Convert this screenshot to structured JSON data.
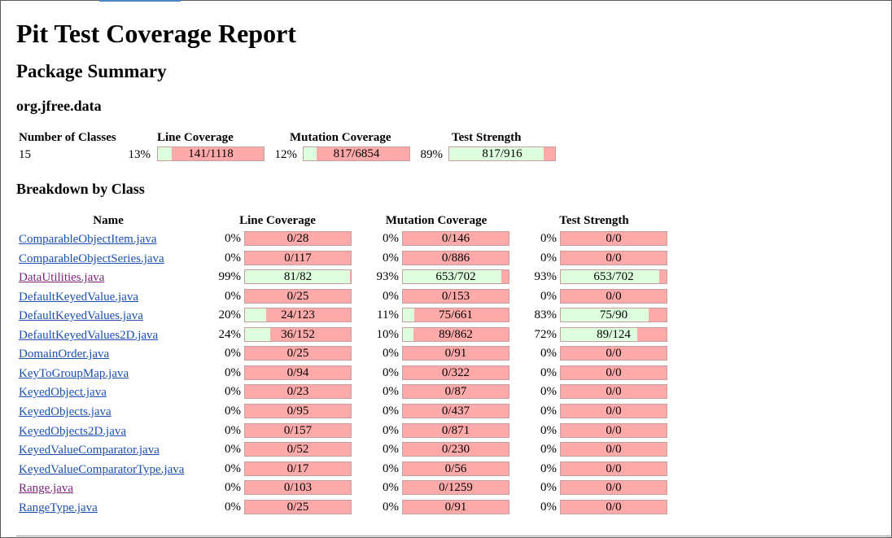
{
  "report": {
    "title": "Pit Test Coverage Report",
    "package_summary_heading": "Package Summary",
    "package_name": "org.jfree.data",
    "breakdown_heading": "Breakdown by Class"
  },
  "summary": {
    "headers": {
      "classes": "Number of Classes",
      "line": "Line Coverage",
      "mutation": "Mutation Coverage",
      "strength": "Test Strength"
    },
    "classes": "15",
    "line": {
      "pct": "13%",
      "text": "141/1118",
      "fraction": 0.13
    },
    "mutation": {
      "pct": "12%",
      "text": "817/6854",
      "fraction": 0.12
    },
    "strength": {
      "pct": "89%",
      "text": "817/916",
      "fraction": 0.89
    }
  },
  "breakdown": {
    "headers": {
      "name": "Name",
      "line": "Line Coverage",
      "mutation": "Mutation Coverage",
      "strength": "Test Strength"
    },
    "rows": [
      {
        "name": "ComparableObjectItem.java",
        "visited": false,
        "line": {
          "pct": "0%",
          "text": "0/28",
          "fraction": 0
        },
        "mutation": {
          "pct": "0%",
          "text": "0/146",
          "fraction": 0
        },
        "strength": {
          "pct": "0%",
          "text": "0/0",
          "fraction": 0
        }
      },
      {
        "name": "ComparableObjectSeries.java",
        "visited": false,
        "line": {
          "pct": "0%",
          "text": "0/117",
          "fraction": 0
        },
        "mutation": {
          "pct": "0%",
          "text": "0/886",
          "fraction": 0
        },
        "strength": {
          "pct": "0%",
          "text": "0/0",
          "fraction": 0
        }
      },
      {
        "name": "DataUtilities.java",
        "visited": true,
        "line": {
          "pct": "99%",
          "text": "81/82",
          "fraction": 0.99
        },
        "mutation": {
          "pct": "93%",
          "text": "653/702",
          "fraction": 0.93
        },
        "strength": {
          "pct": "93%",
          "text": "653/702",
          "fraction": 0.93
        }
      },
      {
        "name": "DefaultKeyedValue.java",
        "visited": false,
        "line": {
          "pct": "0%",
          "text": "0/25",
          "fraction": 0
        },
        "mutation": {
          "pct": "0%",
          "text": "0/153",
          "fraction": 0
        },
        "strength": {
          "pct": "0%",
          "text": "0/0",
          "fraction": 0
        }
      },
      {
        "name": "DefaultKeyedValues.java",
        "visited": false,
        "line": {
          "pct": "20%",
          "text": "24/123",
          "fraction": 0.2
        },
        "mutation": {
          "pct": "11%",
          "text": "75/661",
          "fraction": 0.11
        },
        "strength": {
          "pct": "83%",
          "text": "75/90",
          "fraction": 0.83
        }
      },
      {
        "name": "DefaultKeyedValues2D.java",
        "visited": false,
        "line": {
          "pct": "24%",
          "text": "36/152",
          "fraction": 0.24
        },
        "mutation": {
          "pct": "10%",
          "text": "89/862",
          "fraction": 0.1
        },
        "strength": {
          "pct": "72%",
          "text": "89/124",
          "fraction": 0.72
        }
      },
      {
        "name": "DomainOrder.java",
        "visited": false,
        "line": {
          "pct": "0%",
          "text": "0/25",
          "fraction": 0
        },
        "mutation": {
          "pct": "0%",
          "text": "0/91",
          "fraction": 0
        },
        "strength": {
          "pct": "0%",
          "text": "0/0",
          "fraction": 0
        }
      },
      {
        "name": "KeyToGroupMap.java",
        "visited": false,
        "line": {
          "pct": "0%",
          "text": "0/94",
          "fraction": 0
        },
        "mutation": {
          "pct": "0%",
          "text": "0/322",
          "fraction": 0
        },
        "strength": {
          "pct": "0%",
          "text": "0/0",
          "fraction": 0
        }
      },
      {
        "name": "KeyedObject.java",
        "visited": false,
        "line": {
          "pct": "0%",
          "text": "0/23",
          "fraction": 0
        },
        "mutation": {
          "pct": "0%",
          "text": "0/87",
          "fraction": 0
        },
        "strength": {
          "pct": "0%",
          "text": "0/0",
          "fraction": 0
        }
      },
      {
        "name": "KeyedObjects.java",
        "visited": false,
        "line": {
          "pct": "0%",
          "text": "0/95",
          "fraction": 0
        },
        "mutation": {
          "pct": "0%",
          "text": "0/437",
          "fraction": 0
        },
        "strength": {
          "pct": "0%",
          "text": "0/0",
          "fraction": 0
        }
      },
      {
        "name": "KeyedObjects2D.java",
        "visited": false,
        "line": {
          "pct": "0%",
          "text": "0/157",
          "fraction": 0
        },
        "mutation": {
          "pct": "0%",
          "text": "0/871",
          "fraction": 0
        },
        "strength": {
          "pct": "0%",
          "text": "0/0",
          "fraction": 0
        }
      },
      {
        "name": "KeyedValueComparator.java",
        "visited": false,
        "line": {
          "pct": "0%",
          "text": "0/52",
          "fraction": 0
        },
        "mutation": {
          "pct": "0%",
          "text": "0/230",
          "fraction": 0
        },
        "strength": {
          "pct": "0%",
          "text": "0/0",
          "fraction": 0
        }
      },
      {
        "name": "KeyedValueComparatorType.java",
        "visited": false,
        "line": {
          "pct": "0%",
          "text": "0/17",
          "fraction": 0
        },
        "mutation": {
          "pct": "0%",
          "text": "0/56",
          "fraction": 0
        },
        "strength": {
          "pct": "0%",
          "text": "0/0",
          "fraction": 0
        }
      },
      {
        "name": "Range.java",
        "visited": true,
        "line": {
          "pct": "0%",
          "text": "0/103",
          "fraction": 0
        },
        "mutation": {
          "pct": "0%",
          "text": "0/1259",
          "fraction": 0
        },
        "strength": {
          "pct": "0%",
          "text": "0/0",
          "fraction": 0
        }
      },
      {
        "name": "RangeType.java",
        "visited": false,
        "line": {
          "pct": "0%",
          "text": "0/25",
          "fraction": 0
        },
        "mutation": {
          "pct": "0%",
          "text": "0/91",
          "fraction": 0
        },
        "strength": {
          "pct": "0%",
          "text": "0/0",
          "fraction": 0
        }
      }
    ]
  },
  "colors": {
    "covered": "#ddffdd",
    "uncovered": "#ffaaaa",
    "link": "#1a4fb0",
    "visited_link": "#7a1f7a"
  }
}
